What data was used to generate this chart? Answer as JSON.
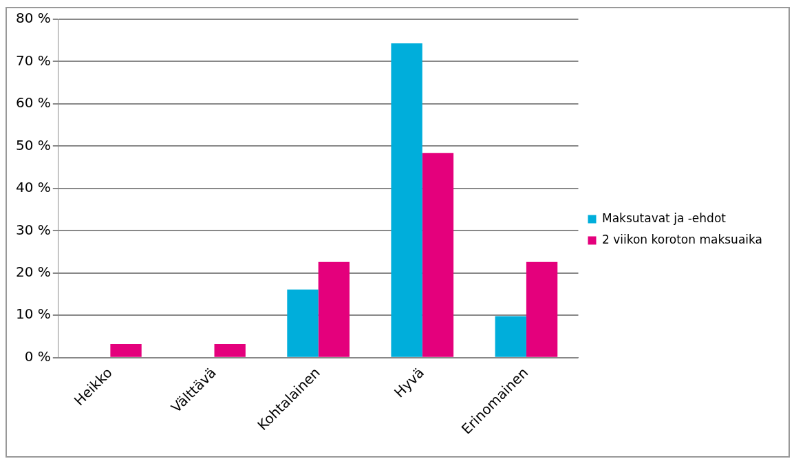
{
  "chart_data": {
    "type": "bar",
    "categories": [
      "Heikko",
      "Välttävä",
      "Kohtalainen",
      "Hyvä",
      "Erinomainen"
    ],
    "series": [
      {
        "name": "Maksutavat ja -ehdot",
        "color": "#00aedb",
        "values": [
          0,
          0,
          16.1,
          74.3,
          9.8
        ]
      },
      {
        "name": "2 viikon koroton maksuaika",
        "color": "#e4007c",
        "values": [
          3.2,
          3.2,
          22.6,
          48.4,
          22.6
        ]
      }
    ],
    "ylim": [
      0,
      80
    ],
    "yticks": [
      {
        "value": 0,
        "label": "0 %"
      },
      {
        "value": 10,
        "label": "10 %"
      },
      {
        "value": 20,
        "label": "20 %"
      },
      {
        "value": 30,
        "label": "30 %"
      },
      {
        "value": 40,
        "label": "40 %"
      },
      {
        "value": 50,
        "label": "50 %"
      },
      {
        "value": 60,
        "label": "60 %"
      },
      {
        "value": 70,
        "label": "70 %"
      },
      {
        "value": 80,
        "label": "80 %"
      }
    ],
    "grid": "y",
    "legend": "right"
  }
}
